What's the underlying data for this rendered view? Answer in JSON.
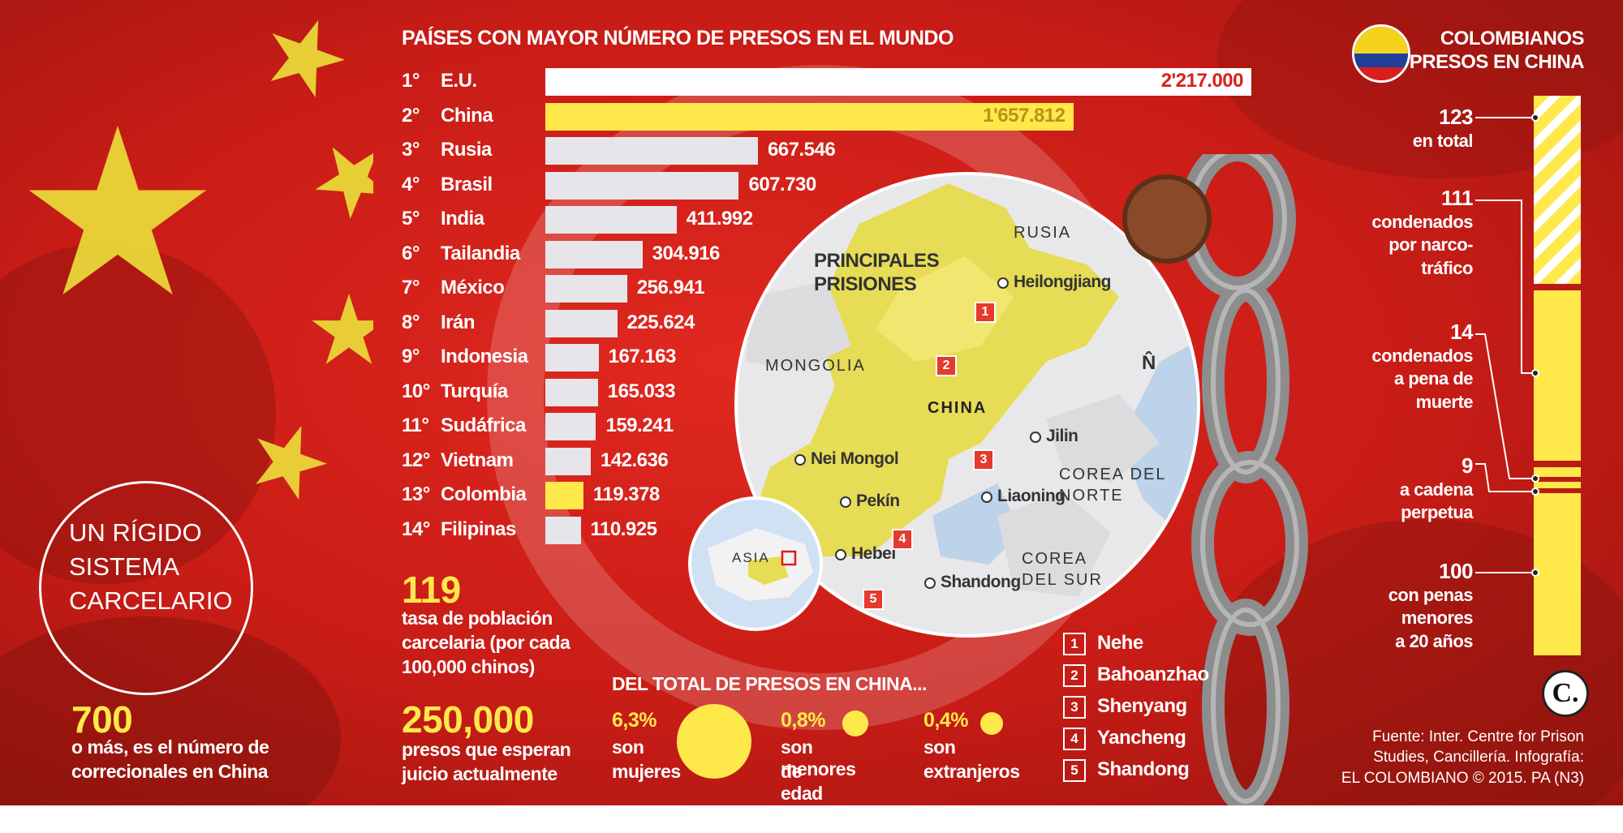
{
  "header": {
    "chart_title": "PAÍSES CON MAYOR NÚMERO DE PRESOS EN EL MUNDO",
    "colombianos_title_1": "COLOMBIANOS",
    "colombianos_title_2": "PRESOS EN CHINA"
  },
  "colors": {
    "background_red": "#cc2018",
    "flag_yellow": "#ffe84a",
    "bar_white": "#ffffff",
    "bar_light": "#e6e6ea",
    "value_red": "#d8201a"
  },
  "chart_data": {
    "type": "bar",
    "orientation": "horizontal",
    "title": "PAÍSES CON MAYOR NÚMERO DE PRESOS EN EL MUNDO",
    "categories": [
      "E.U.",
      "China",
      "Rusia",
      "Brasil",
      "India",
      "Tailandia",
      "México",
      "Irán",
      "Indonesia",
      "Turquía",
      "Sudáfrica",
      "Vietnam",
      "Colombia",
      "Filipinas"
    ],
    "ranks": [
      "1°",
      "2°",
      "3°",
      "4°",
      "5°",
      "6°",
      "7°",
      "8°",
      "9°",
      "10°",
      "11°",
      "12°",
      "13°",
      "14°"
    ],
    "values": [
      2217000,
      1657812,
      667546,
      607730,
      411992,
      304916,
      256941,
      225624,
      167163,
      165033,
      159241,
      142636,
      119378,
      110925
    ],
    "value_labels": [
      "2'217.000",
      "1'657.812",
      "667.546",
      "607.730",
      "411.992",
      "304.916",
      "256.941",
      "225.624",
      "167.163",
      "165.033",
      "159.241",
      "142.636",
      "119.378",
      "110.925"
    ],
    "highlight": [
      "white",
      "yellow",
      "light",
      "light",
      "light",
      "light",
      "light",
      "light",
      "light",
      "light",
      "light",
      "light",
      "yellow",
      "light"
    ]
  },
  "stats": {
    "rate_value": "119",
    "rate_text_1": "tasa de población",
    "rate_text_2": "carcelaria (por cada",
    "rate_text_3": "100,000 chinos)",
    "waiting_value": "250,000",
    "waiting_text_1": "presos que esperan",
    "waiting_text_2": "juicio actualmente",
    "correctional_value": "700",
    "correctional_text_1": "o más, es el número de",
    "correctional_text_2": "correcionales en China"
  },
  "circle_title": {
    "line1": "UN RÍGIDO",
    "line2": "SISTEMA",
    "line3": "CARCELARIO"
  },
  "map": {
    "title_1": "PRINCIPALES",
    "title_2": "PRISIONES",
    "rusia": "RUSIA",
    "mongolia": "MONGOLIA",
    "china": "CHINA",
    "corea_norte_1": "COREA DEL",
    "corea_norte_2": "NORTE",
    "corea_sur_1": "COREA",
    "corea_sur_2": "DEL SUR",
    "north": "N̂",
    "asia": "ASIA",
    "cities": [
      "Heilongjiang",
      "Jilin",
      "Nei Mongol",
      "Pekín",
      "Liaoning",
      "Hebei",
      "Shandong"
    ],
    "prison_numbers": [
      "1",
      "2",
      "3",
      "4",
      "5"
    ]
  },
  "prisons_legend": [
    {
      "num": "1",
      "name": "Nehe"
    },
    {
      "num": "2",
      "name": "Bahoanzhao"
    },
    {
      "num": "3",
      "name": "Shenyang"
    },
    {
      "num": "4",
      "name": "Yancheng"
    },
    {
      "num": "5",
      "name": "Shandong"
    }
  ],
  "total_section": {
    "title": "DEL TOTAL DE PRESOS EN CHINA...",
    "items": [
      {
        "pct": "6,3%",
        "line1": "son",
        "line2": "mujeres",
        "value": 6.3
      },
      {
        "pct": "0,8%",
        "line1": "son menores",
        "line2": "de edad",
        "value": 0.8
      },
      {
        "pct": "0,4%",
        "line1": "son",
        "line2": "extranjeros",
        "value": 0.4
      }
    ]
  },
  "colombianos": [
    {
      "num": "123",
      "lines": [
        "en total"
      ]
    },
    {
      "num": "111",
      "lines": [
        "condenados",
        "por narco-",
        "tráfico"
      ]
    },
    {
      "num": "14",
      "lines": [
        "condenados",
        "a pena de",
        "muerte"
      ]
    },
    {
      "num": "9",
      "lines": [
        "a cadena",
        "perpetua"
      ]
    },
    {
      "num": "100",
      "lines": [
        "con penas",
        "menores",
        "a 20 años"
      ]
    }
  ],
  "source": {
    "line1": "Fuente: Inter. Centre for Prison",
    "line2": "Studies, Cancillería. Infografía:",
    "line3": "EL COLOMBIANO © 2015. PA (N3)",
    "logo": "C."
  }
}
